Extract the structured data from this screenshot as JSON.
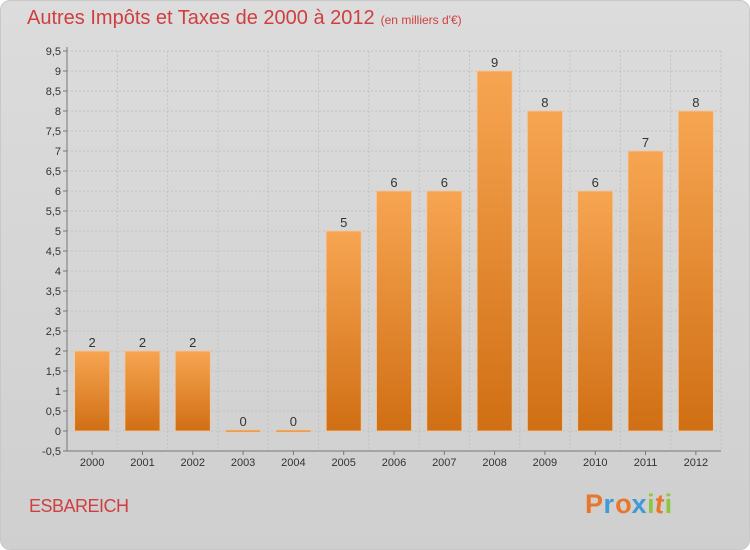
{
  "header": {
    "title": "Autres Impôts et Taxes de 2000 à 2012",
    "subtitle": "(en milliers d'€)"
  },
  "footer": {
    "place": "ESBAREICH",
    "logo": "Proxiti"
  },
  "colors": {
    "bar_light": "#f7a552",
    "bar_dark": "#d06f14",
    "title": "#cf3f3f",
    "background": "#d6d6d6",
    "grid": "#c2c2c2",
    "logo": [
      "#e8762d",
      "#3f9ad6",
      "#e8762d",
      "#3f9ad6",
      "#8dc63f",
      "#e8762d",
      "#8dc63f"
    ]
  },
  "chart_data": {
    "type": "bar",
    "title": "Autres Impôts et Taxes de 2000 à 2012",
    "subtitle": "(en milliers d'€)",
    "categories": [
      "2000",
      "2001",
      "2002",
      "2003",
      "2004",
      "2005",
      "2006",
      "2007",
      "2008",
      "2009",
      "2010",
      "2011",
      "2012"
    ],
    "values": [
      2,
      2,
      2,
      0,
      0,
      5,
      6,
      6,
      9,
      8,
      6,
      7,
      8
    ],
    "data_labels": [
      "2",
      "2",
      "2",
      "0",
      "0",
      "5",
      "6",
      "6",
      "9",
      "8",
      "6",
      "7",
      "8"
    ],
    "yticks": [
      "-0,5",
      "0",
      "0,5",
      "1",
      "1,5",
      "2",
      "2,5",
      "3",
      "3,5",
      "4",
      "4,5",
      "5",
      "5,5",
      "6",
      "6,5",
      "7",
      "7,5",
      "8",
      "8,5",
      "9",
      "9,5"
    ],
    "ylim": [
      -0.5,
      9.5
    ],
    "grid": true,
    "xlabel": "",
    "ylabel": ""
  }
}
